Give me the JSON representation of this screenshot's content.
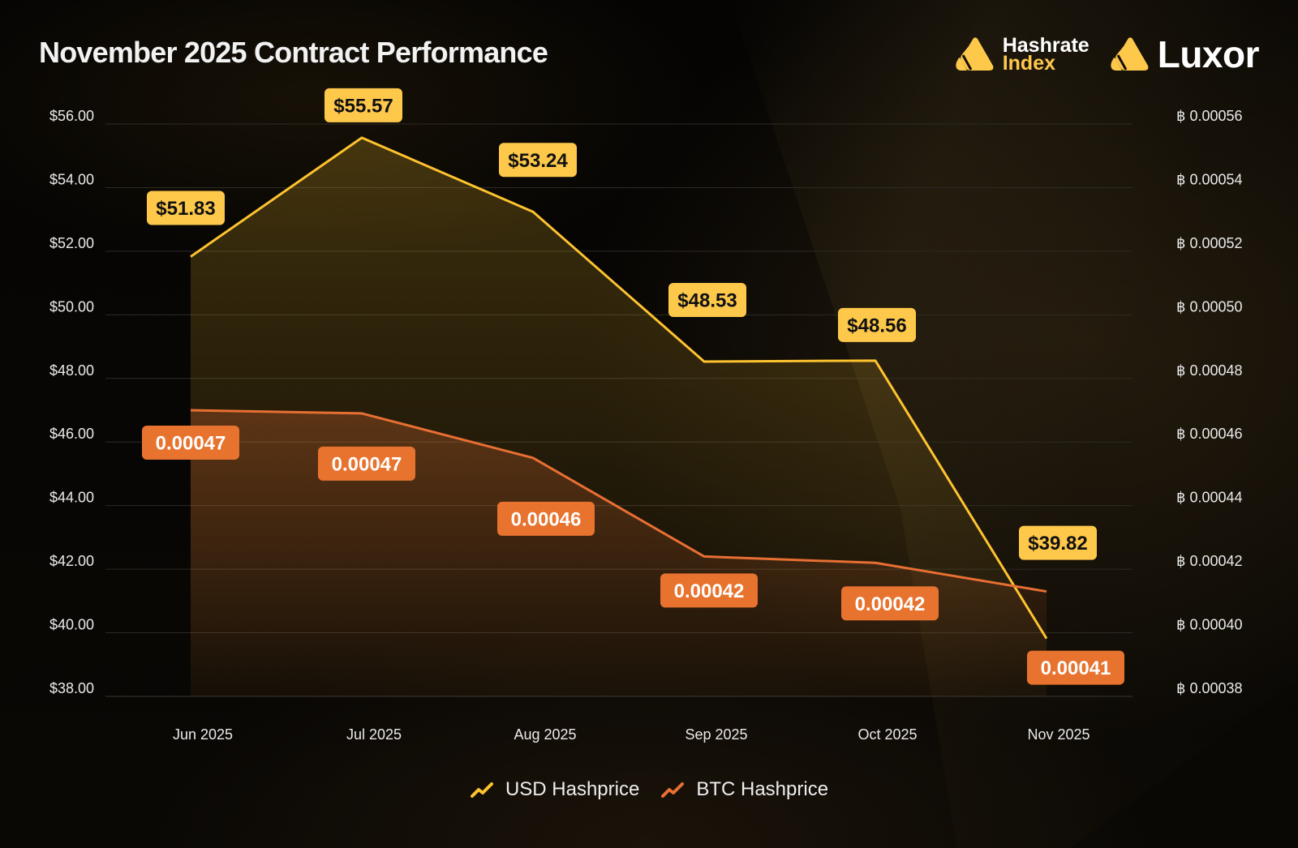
{
  "title": "November 2025 Contract Performance",
  "brands": {
    "hashrate_index": {
      "line1": "Hashrate",
      "line2": "Index",
      "icon": "hashrate-index-logo-icon"
    },
    "luxor": {
      "name": "Luxor",
      "icon": "luxor-logo-icon"
    }
  },
  "colors": {
    "usd": "#fec32f",
    "usd_label_bg": "#fec84b",
    "btc": "#e86f33",
    "btc_label_bg": "#e8732f",
    "grid": "#2e2a25",
    "text": "#eaeaea"
  },
  "chart_data": {
    "type": "line",
    "title": "November 2025 Contract Performance",
    "xlabel": "",
    "ylabel": "USD Hashprice",
    "y2label": "BTC Hashprice",
    "categories": [
      "Jun 2025",
      "Jul 2025",
      "Aug 2025",
      "Sep 2025",
      "Oct 2025",
      "Nov 2025"
    ],
    "ylim": [
      38,
      56
    ],
    "y2lim": [
      0.00038,
      0.00056
    ],
    "yticks": [
      "$56.00",
      "$54.00",
      "$52.00",
      "$50.00",
      "$48.00",
      "$46.00",
      "$44.00",
      "$42.00",
      "$40.00",
      "$38.00"
    ],
    "y2ticks": [
      "฿ 0.00056",
      "฿ 0.00054",
      "฿ 0.00052",
      "฿ 0.00050",
      "฿ 0.00048",
      "฿ 0.00046",
      "฿ 0.00044",
      "฿ 0.00042",
      "฿ 0.00040",
      "฿ 0.00038"
    ],
    "grid": true,
    "legend_position": "bottom-center",
    "series": [
      {
        "name": "USD Hashprice",
        "axis": "left",
        "values": [
          51.83,
          55.57,
          53.24,
          48.53,
          48.56,
          39.82
        ],
        "labels": [
          "$51.83",
          "$55.57",
          "$53.24",
          "$48.53",
          "$48.56",
          "$39.82"
        ]
      },
      {
        "name": "BTC Hashprice",
        "axis": "right",
        "values": [
          0.00047,
          0.000469,
          0.000455,
          0.000424,
          0.000422,
          0.000413
        ],
        "labels": [
          "0.00047",
          "0.00047",
          "0.00046",
          "0.00042",
          "0.00042",
          "0.00041"
        ]
      }
    ]
  },
  "legend": [
    {
      "label": "USD Hashprice",
      "icon": "trend-line-icon"
    },
    {
      "label": "BTC Hashprice",
      "icon": "trend-line-icon"
    }
  ]
}
